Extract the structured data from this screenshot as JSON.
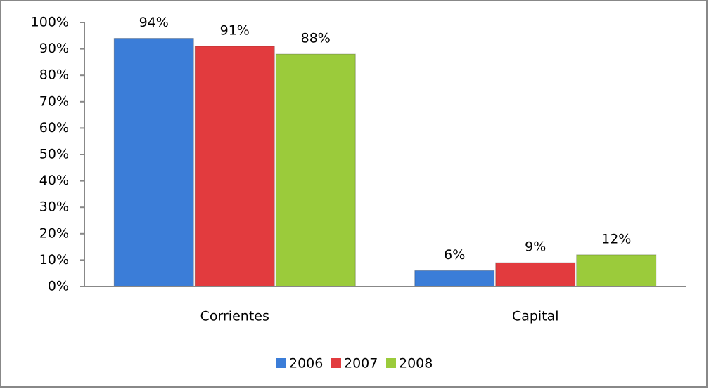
{
  "chart_data": {
    "type": "bar",
    "categories": [
      "Corrientes",
      "Capital"
    ],
    "series": [
      {
        "name": "2006",
        "color": "#3b7dd8",
        "values": [
          94,
          6
        ],
        "value_labels": [
          "94%",
          "6%"
        ]
      },
      {
        "name": "2007",
        "color": "#e23b3e",
        "values": [
          91,
          9
        ],
        "value_labels": [
          "91%",
          "9%"
        ]
      },
      {
        "name": "2008",
        "color": "#9bcb3b",
        "values": [
          88,
          12
        ],
        "value_labels": [
          "88%",
          "12%"
        ]
      }
    ],
    "ylim": [
      0,
      100
    ],
    "yticks": [
      {
        "value": 0,
        "label": "0%"
      },
      {
        "value": 10,
        "label": "10%"
      },
      {
        "value": 20,
        "label": "20%"
      },
      {
        "value": 30,
        "label": "30%"
      },
      {
        "value": 40,
        "label": "40%"
      },
      {
        "value": 50,
        "label": "50%"
      },
      {
        "value": 60,
        "label": "60%"
      },
      {
        "value": 70,
        "label": "70%"
      },
      {
        "value": 80,
        "label": "80%"
      },
      {
        "value": 90,
        "label": "90%"
      },
      {
        "value": 100,
        "label": "100%"
      }
    ],
    "legend": "bottom"
  }
}
